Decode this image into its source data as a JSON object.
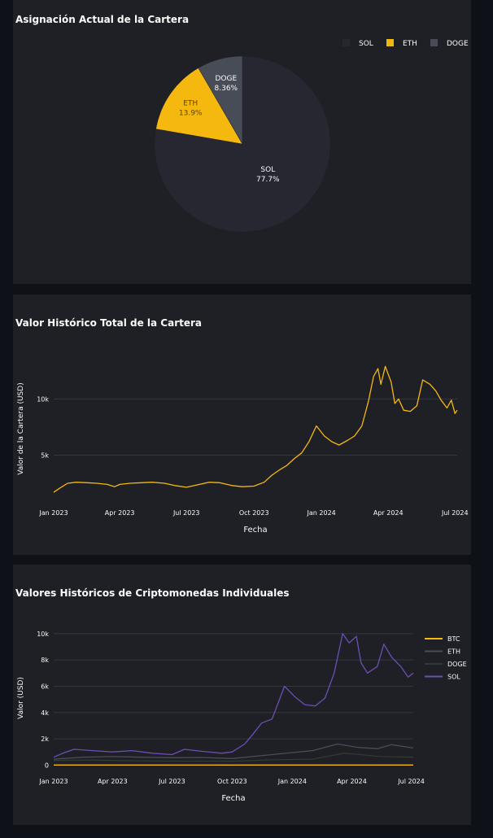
{
  "colors": {
    "background": "#0e1117",
    "panel": "#1f2026",
    "grid": "#33363f",
    "axis_text": "#fafafa",
    "sol_pie": "#262730",
    "eth": "#f5b80f",
    "doge_pie": "#474c56",
    "btc_line": "#f5b80f",
    "eth_line": "#4a4d56",
    "doge_line": "#2e3a33",
    "sol_line": "#6b4fb3"
  },
  "chart_data": [
    {
      "type": "pie",
      "title": "Asignación Actual de la Cartera",
      "legend_position": "top-right",
      "slices": [
        {
          "label": "SOL",
          "value": 77.7,
          "value_label": "77.7%",
          "color": "#262730"
        },
        {
          "label": "ETH",
          "value": 13.9,
          "value_label": "13.9%",
          "color": "#f5b80f"
        },
        {
          "label": "DOGE",
          "value": 8.36,
          "value_label": "8.36%",
          "color": "#474c56"
        }
      ]
    },
    {
      "type": "line",
      "title": "Valor Histórico Total de la Cartera",
      "xlabel": "Fecha",
      "ylabel": "Valor de la Cartera (USD)",
      "x_ticks": [
        "Jan 2023",
        "Apr 2023",
        "Jul 2023",
        "Oct 2023",
        "Jan 2024",
        "Apr 2024",
        "Jul 2024"
      ],
      "y_ticks": [
        {
          "v": 5000,
          "label": "5k"
        },
        {
          "v": 10000,
          "label": "10k"
        }
      ],
      "xlim": [
        "2023-01-01",
        "2024-07-04"
      ],
      "ylim": [
        1200,
        13500
      ],
      "grid": true,
      "series": [
        {
          "color": "#f5b80f",
          "points": [
            [
              "2023-01-01",
              1700
            ],
            [
              "2023-01-10",
              2100
            ],
            [
              "2023-01-20",
              2500
            ],
            [
              "2023-02-01",
              2600
            ],
            [
              "2023-02-15",
              2550
            ],
            [
              "2023-03-01",
              2500
            ],
            [
              "2023-03-15",
              2400
            ],
            [
              "2023-03-25",
              2200
            ],
            [
              "2023-04-01",
              2400
            ],
            [
              "2023-04-15",
              2500
            ],
            [
              "2023-05-01",
              2550
            ],
            [
              "2023-05-15",
              2600
            ],
            [
              "2023-06-01",
              2500
            ],
            [
              "2023-06-15",
              2300
            ],
            [
              "2023-07-01",
              2150
            ],
            [
              "2023-07-15",
              2350
            ],
            [
              "2023-08-01",
              2600
            ],
            [
              "2023-08-15",
              2550
            ],
            [
              "2023-09-01",
              2300
            ],
            [
              "2023-09-15",
              2200
            ],
            [
              "2023-10-01",
              2250
            ],
            [
              "2023-10-15",
              2600
            ],
            [
              "2023-10-25",
              3200
            ],
            [
              "2023-11-05",
              3700
            ],
            [
              "2023-11-15",
              4100
            ],
            [
              "2023-11-25",
              4700
            ],
            [
              "2023-12-05",
              5200
            ],
            [
              "2023-12-15",
              6200
            ],
            [
              "2023-12-25",
              7600
            ],
            [
              "2024-01-05",
              6700
            ],
            [
              "2024-01-15",
              6200
            ],
            [
              "2024-01-25",
              5900
            ],
            [
              "2024-02-05",
              6300
            ],
            [
              "2024-02-15",
              6700
            ],
            [
              "2024-02-25",
              7600
            ],
            [
              "2024-03-05",
              9800
            ],
            [
              "2024-03-12",
              12000
            ],
            [
              "2024-03-18",
              12700
            ],
            [
              "2024-03-22",
              11300
            ],
            [
              "2024-03-28",
              12900
            ],
            [
              "2024-04-05",
              11500
            ],
            [
              "2024-04-10",
              9600
            ],
            [
              "2024-04-15",
              10000
            ],
            [
              "2024-04-22",
              9000
            ],
            [
              "2024-05-01",
              8900
            ],
            [
              "2024-05-10",
              9400
            ],
            [
              "2024-05-18",
              11700
            ],
            [
              "2024-05-28",
              11300
            ],
            [
              "2024-06-05",
              10700
            ],
            [
              "2024-06-12",
              9900
            ],
            [
              "2024-06-20",
              9200
            ],
            [
              "2024-06-26",
              9900
            ],
            [
              "2024-07-01",
              8700
            ],
            [
              "2024-07-04",
              9000
            ]
          ]
        }
      ]
    },
    {
      "type": "line",
      "title": "Valores Históricos de Criptomonedas Individuales",
      "xlabel": "Fecha",
      "ylabel": "Valor (USD)",
      "x_ticks": [
        "Jan 2023",
        "Apr 2023",
        "Jul 2023",
        "Oct 2023",
        "Jan 2024",
        "Apr 2024",
        "Jul 2024"
      ],
      "y_ticks": [
        {
          "v": 0,
          "label": "0"
        },
        {
          "v": 2000,
          "label": "2k"
        },
        {
          "v": 4000,
          "label": "4k"
        },
        {
          "v": 6000,
          "label": "6k"
        },
        {
          "v": 8000,
          "label": "8k"
        },
        {
          "v": 10000,
          "label": "10k"
        }
      ],
      "xlim": [
        "2023-01-01",
        "2024-07-04"
      ],
      "ylim": [
        -100,
        10300
      ],
      "grid": true,
      "legend_position": "right",
      "series": [
        {
          "name": "BTC",
          "color": "#f5b80f",
          "points": [
            [
              "2023-01-01",
              5
            ],
            [
              "2024-07-04",
              5
            ]
          ]
        },
        {
          "name": "ETH",
          "color": "#4a4d56",
          "points": [
            [
              "2023-01-01",
              450
            ],
            [
              "2023-02-15",
              600
            ],
            [
              "2023-04-01",
              650
            ],
            [
              "2023-05-15",
              600
            ],
            [
              "2023-07-01",
              560
            ],
            [
              "2023-08-15",
              580
            ],
            [
              "2023-10-01",
              500
            ],
            [
              "2023-11-01",
              650
            ],
            [
              "2023-12-01",
              800
            ],
            [
              "2024-01-01",
              950
            ],
            [
              "2024-02-01",
              1100
            ],
            [
              "2024-03-10",
              1600
            ],
            [
              "2024-04-10",
              1350
            ],
            [
              "2024-05-10",
              1250
            ],
            [
              "2024-06-01",
              1550
            ],
            [
              "2024-07-04",
              1300
            ]
          ]
        },
        {
          "name": "DOGE",
          "color": "#2e3a33",
          "points": [
            [
              "2023-01-01",
              350
            ],
            [
              "2023-03-01",
              380
            ],
            [
              "2023-05-01",
              330
            ],
            [
              "2023-07-01",
              300
            ],
            [
              "2023-09-01",
              300
            ],
            [
              "2023-10-01",
              290
            ],
            [
              "2023-12-01",
              400
            ],
            [
              "2024-02-01",
              450
            ],
            [
              "2024-03-20",
              900
            ],
            [
              "2024-04-15",
              800
            ],
            [
              "2024-05-15",
              650
            ],
            [
              "2024-07-04",
              600
            ]
          ]
        },
        {
          "name": "SOL",
          "color": "#6b4fb3",
          "points": [
            [
              "2023-01-01",
              600
            ],
            [
              "2023-01-15",
              900
            ],
            [
              "2023-02-01",
              1200
            ],
            [
              "2023-03-01",
              1100
            ],
            [
              "2023-04-01",
              1000
            ],
            [
              "2023-05-01",
              1100
            ],
            [
              "2023-06-01",
              900
            ],
            [
              "2023-07-01",
              800
            ],
            [
              "2023-07-20",
              1200
            ],
            [
              "2023-08-15",
              1050
            ],
            [
              "2023-09-15",
              900
            ],
            [
              "2023-10-01",
              1000
            ],
            [
              "2023-10-20",
              1600
            ],
            [
              "2023-11-01",
              2300
            ],
            [
              "2023-11-15",
              3200
            ],
            [
              "2023-12-01",
              3500
            ],
            [
              "2023-12-20",
              6000
            ],
            [
              "2024-01-05",
              5200
            ],
            [
              "2024-01-20",
              4600
            ],
            [
              "2024-02-05",
              4500
            ],
            [
              "2024-02-20",
              5100
            ],
            [
              "2024-03-05",
              7000
            ],
            [
              "2024-03-18",
              10000
            ],
            [
              "2024-03-28",
              9300
            ],
            [
              "2024-04-08",
              9800
            ],
            [
              "2024-04-15",
              7800
            ],
            [
              "2024-04-25",
              7000
            ],
            [
              "2024-05-10",
              7500
            ],
            [
              "2024-05-20",
              9200
            ],
            [
              "2024-06-01",
              8200
            ],
            [
              "2024-06-15",
              7500
            ],
            [
              "2024-06-26",
              6700
            ],
            [
              "2024-07-04",
              7000
            ]
          ]
        }
      ]
    }
  ]
}
